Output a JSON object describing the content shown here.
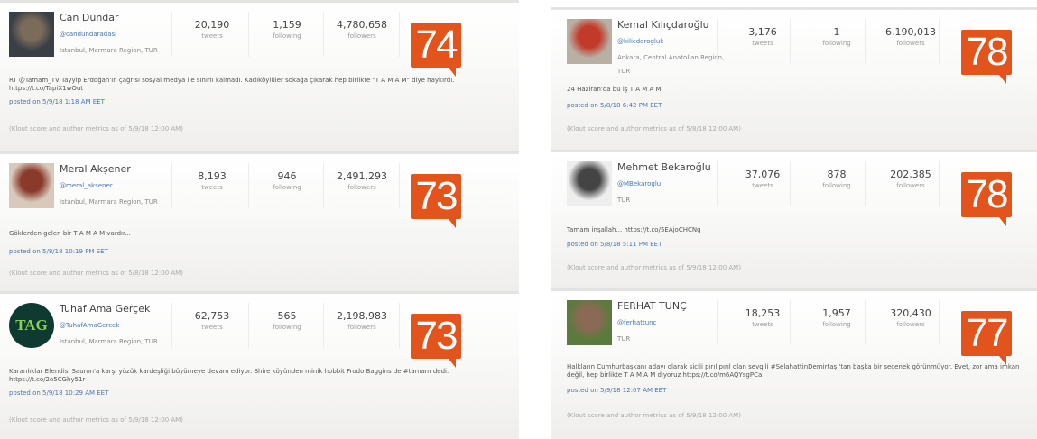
{
  "labels": {
    "tweets": "tweets",
    "following": "following",
    "followers": "followers"
  },
  "colors": {
    "score_badge": "#e2541b",
    "link": "#4a77b4"
  },
  "cards": [
    {
      "name": "Can Dündar",
      "handle": "@candundaradasi",
      "location": "Istanbul, Marmara Region, TUR",
      "tweets": "20,190",
      "following": "1,159",
      "followers": "4,780,658",
      "score": "74",
      "tweet": "RT @Tamam_TV Tayyip Erdoğan'ın çağrısı sosyal medya ile sınırlı kalmadı. Kadıköylüler sokağa çıkarak hep birlikte \"T A M A M\" diye haykırdı.\nhttps://t.co/TapiX1wOut",
      "posted": "posted on 5/9/18 1:18 AM EET",
      "note": "(Klout score and author metrics as of 5/9/18 12:00 AM)",
      "avatar": "photo"
    },
    {
      "name": "Meral Akşener",
      "handle": "@meral_aksener",
      "location": "Istanbul, Marmara Region, TUR",
      "tweets": "8,193",
      "following": "946",
      "followers": "2,491,293",
      "score": "73",
      "tweet": "Göklerden gelen bir T A M A M vardır...",
      "posted": "posted on 5/8/18 10:19 PM EET",
      "note": "(Klout score and author metrics as of 5/8/18 12:00 AM)",
      "avatar": "photo"
    },
    {
      "name": "Tuhaf Ama Gerçek",
      "handle": "@TuhafAmaGercek",
      "location": "Istanbul, Marmara Region, TUR",
      "tweets": "62,753",
      "following": "565",
      "followers": "2,198,983",
      "score": "73",
      "tweet": "Karanlıklar Efendisi Sauron'a karşı yüzük kardeşliği büyümeye devam ediyor. Shire köyünden minik hobbit Frodo Baggins de #tamam dedi.\nhttps://t.co/2o5CGhy51r",
      "posted": "posted on 5/9/18 10:29 AM EET",
      "note": "(Klout score and author metrics as of 5/9/18 12:00 AM)",
      "avatar": "TAG"
    },
    {
      "name": "Kemal Kılıçdaroğlu",
      "handle": "@kilicdarogluk",
      "location": "Ankara, Central Anatolian Region, TUR",
      "tweets": "3,176",
      "following": "1",
      "followers": "6,190,013",
      "score": "78",
      "tweet": "24 Haziran'da bu iş T A M A M",
      "posted": "posted on 5/8/18 6:42 PM EET",
      "note": "(Klout score and author metrics as of 5/8/18 12:00 AM)",
      "avatar": "photo"
    },
    {
      "name": "Mehmet Bekaroğlu",
      "handle": "@MBekaroglu",
      "location": "TUR",
      "tweets": "37,076",
      "following": "878",
      "followers": "202,385",
      "score": "78",
      "tweet": "Tamam inşallah... https://t.co/5EAjoCHCNg",
      "posted": "posted on 5/8/18 5:11 PM EET",
      "note": "(Klout score and author metrics as of 5/9/18 12:00 AM)",
      "avatar": "photo"
    },
    {
      "name": "FERHAT TUNÇ",
      "handle": "@ferhattunc",
      "location": "TUR",
      "tweets": "18,253",
      "following": "1,957",
      "followers": "320,430",
      "score": "77",
      "tweet": "Halkların Cumhurbaşkanı adayı olarak sicili pırıl pırıl olan sevgili #SelahattinDemirtaş 'tan başka bir seçenek görünmüyor. Evet, zor ama imkan\ndeğil, hep birlikte T A M A M diyoruz https://t.co/m6AQYsgPCa",
      "posted": "posted on 5/9/18 12:07 AM EET",
      "note": "(Klout score and author metrics as of 5/9/18 12:00 AM)",
      "avatar": "photo"
    }
  ]
}
